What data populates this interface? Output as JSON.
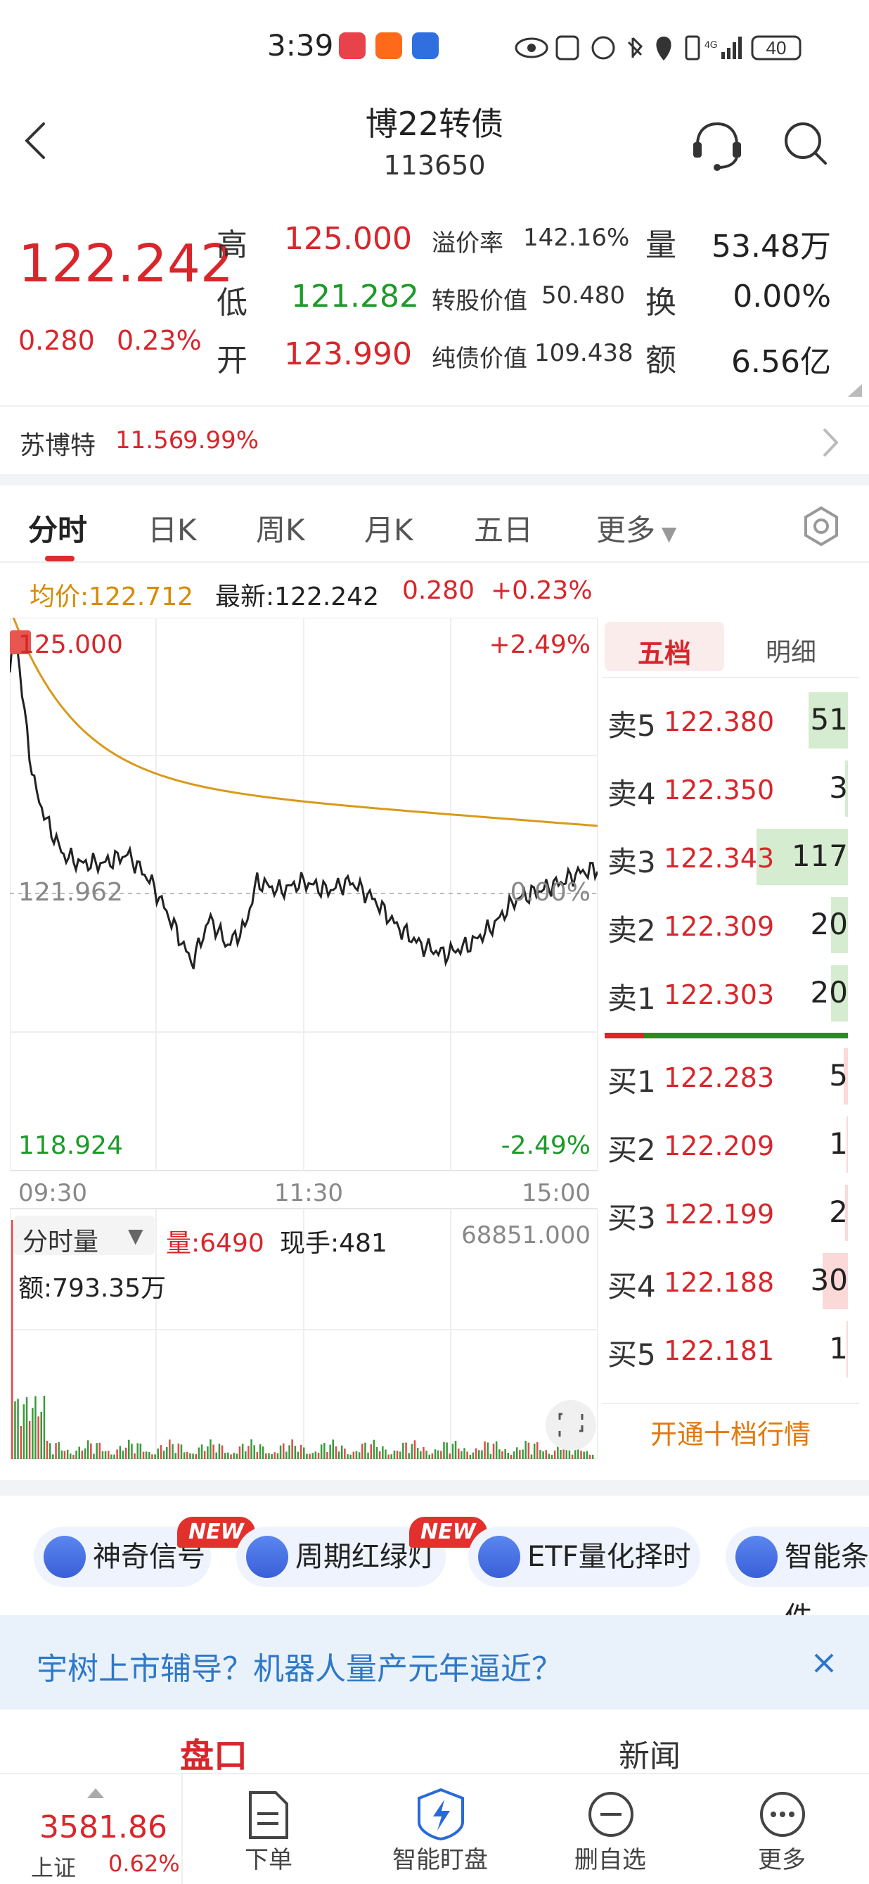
{
  "status_bar": {
    "time": "3:39",
    "network": "4G",
    "battery": "40"
  },
  "header": {
    "title": "博22转债",
    "code": "113650"
  },
  "quote": {
    "price": "122.242",
    "change": "0.280",
    "change_pct": "0.23%",
    "high_label": "高",
    "high": "125.000",
    "low_label": "低",
    "low": "121.282",
    "open_label": "开",
    "open": "123.990",
    "premium_label": "溢价率",
    "premium": "142.16%",
    "conv_label": "转股价值",
    "conv": "50.480",
    "bond_label": "纯债价值",
    "bond": "109.438",
    "vol_label": "量",
    "vol": "53.48万",
    "turnover_label": "换",
    "turnover": "0.00%",
    "amount_label": "额",
    "amount": "6.56亿"
  },
  "related": {
    "name": "苏博特",
    "price": "11.56",
    "pct": "9.99%"
  },
  "tabs": [
    "分时",
    "日K",
    "周K",
    "月K",
    "五日",
    "更多"
  ],
  "info": {
    "avg_label": "均价:122.712",
    "latest_label": "最新:122.242",
    "change": "0.280",
    "pct": "+0.23%"
  },
  "chart": {
    "top_price": "125.000",
    "top_pct": "+2.49%",
    "mid_price": "121.962",
    "mid_pct": "0.00%",
    "bottom_price": "118.924",
    "bottom_pct": "-2.49%",
    "time_start": "09:30",
    "time_mid": "11:30",
    "time_end": "15:00",
    "vol_selector": "分时量",
    "vol_now": "量:6490",
    "hand_now": "现手:481",
    "vol_max": "68851.000",
    "amount_now": "额:793.35万"
  },
  "chart_data": {
    "type": "line",
    "x": [
      "09:30",
      "11:30",
      "15:00"
    ],
    "ylim": [
      118.924,
      125.0
    ],
    "series": [
      {
        "name": "均价",
        "color": "#d89a1a"
      },
      {
        "name": "最新",
        "color": "#222222"
      }
    ]
  },
  "orderbook": {
    "tab_active": "五档",
    "tab_other": "明细",
    "asks": [
      {
        "label": "卖5",
        "price": "122.380",
        "vol": "51"
      },
      {
        "label": "卖4",
        "price": "122.350",
        "vol": "3"
      },
      {
        "label": "卖3",
        "price": "122.343",
        "vol": "117"
      },
      {
        "label": "卖2",
        "price": "122.309",
        "vol": "20"
      },
      {
        "label": "卖1",
        "price": "122.303",
        "vol": "20"
      }
    ],
    "bids": [
      {
        "label": "买1",
        "price": "122.283",
        "vol": "5"
      },
      {
        "label": "买2",
        "price": "122.209",
        "vol": "1"
      },
      {
        "label": "买3",
        "price": "122.199",
        "vol": "2"
      },
      {
        "label": "买4",
        "price": "122.188",
        "vol": "30"
      },
      {
        "label": "买5",
        "price": "122.181",
        "vol": "1"
      }
    ],
    "open_ten": "开通十档行情"
  },
  "features": [
    {
      "label": "神奇信号",
      "badge": "NEW"
    },
    {
      "label": "周期红绿灯",
      "badge": "NEW"
    },
    {
      "label": "ETF量化择时",
      "badge": ""
    },
    {
      "label": "智能条件",
      "badge": ""
    }
  ],
  "banner": {
    "text": "宇树上市辅导？机器人量产元年逼近？"
  },
  "section_tabs": {
    "left": "盘口",
    "right": "新闻"
  },
  "bottom": {
    "index_value": "3581.86",
    "index_name": "上证",
    "index_pct": "0.62%",
    "items": [
      "下单",
      "智能盯盘",
      "删自选",
      "更多"
    ]
  }
}
